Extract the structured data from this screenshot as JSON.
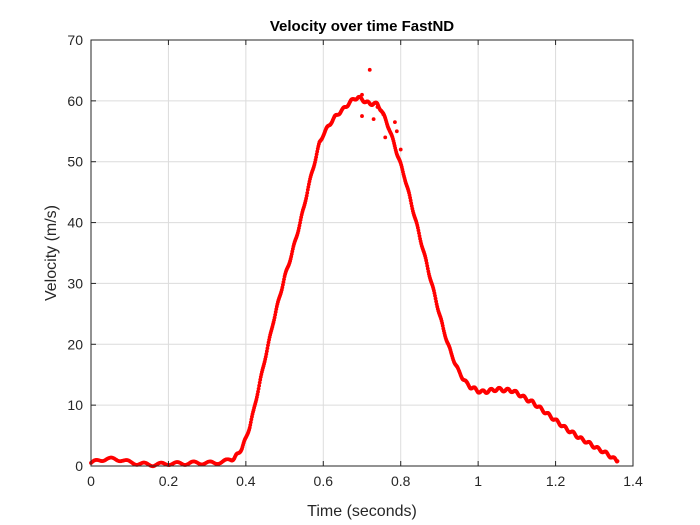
{
  "chart_data": {
    "type": "scatter",
    "title": "Velocity over time FastND",
    "xlabel": "Time (seconds)",
    "ylabel": "Velocity (m/s)",
    "xlim": [
      0,
      1.4
    ],
    "ylim": [
      0,
      70
    ],
    "xticks": [
      0,
      0.2,
      0.4,
      0.6,
      0.8,
      1,
      1.2,
      1.4
    ],
    "xtick_labels": [
      "0",
      "0.2",
      "0.4",
      "0.6",
      "0.8",
      "1",
      "1.2",
      "1.4"
    ],
    "yticks": [
      0,
      10,
      20,
      30,
      40,
      50,
      60,
      70
    ],
    "ytick_labels": [
      "0",
      "10",
      "20",
      "30",
      "40",
      "50",
      "60",
      "70"
    ],
    "grid": true,
    "marker_color": "#ff0000",
    "series": [
      {
        "x": [
          0.0,
          0.02,
          0.04,
          0.06,
          0.08,
          0.1,
          0.12,
          0.14,
          0.16,
          0.18,
          0.2,
          0.22,
          0.24,
          0.26,
          0.28,
          0.3,
          0.32,
          0.34,
          0.36,
          0.37,
          0.38,
          0.39,
          0.4,
          0.41,
          0.42,
          0.43,
          0.44,
          0.45,
          0.46,
          0.47,
          0.48,
          0.49,
          0.5,
          0.51,
          0.52,
          0.53,
          0.54,
          0.55,
          0.56,
          0.57,
          0.58,
          0.59,
          0.6,
          0.61,
          0.62,
          0.63,
          0.64,
          0.65,
          0.66,
          0.67,
          0.68,
          0.69,
          0.7,
          0.71,
          0.72,
          0.73,
          0.74,
          0.75,
          0.76,
          0.77,
          0.78,
          0.79,
          0.8,
          0.81,
          0.82,
          0.83,
          0.84,
          0.85,
          0.86,
          0.87,
          0.88,
          0.89,
          0.9,
          0.91,
          0.92,
          0.93,
          0.94,
          0.95,
          0.96,
          0.97,
          0.98,
          0.99,
          1.0,
          1.01,
          1.02,
          1.03,
          1.04,
          1.05,
          1.06,
          1.07,
          1.08,
          1.09,
          1.1,
          1.11,
          1.12,
          1.13,
          1.14,
          1.15,
          1.16,
          1.17,
          1.18,
          1.19,
          1.2,
          1.21,
          1.22,
          1.23,
          1.24,
          1.25,
          1.26,
          1.27,
          1.28,
          1.29,
          1.3,
          1.31,
          1.32,
          1.33,
          1.34,
          1.35,
          1.36
        ],
        "y": [
          0.5,
          0.9,
          1.2,
          1.1,
          1.0,
          0.6,
          0.4,
          0.3,
          0.2,
          0.3,
          0.4,
          0.4,
          0.4,
          0.5,
          0.5,
          0.5,
          0.5,
          0.7,
          1.0,
          1.3,
          2.0,
          3.0,
          4.5,
          6.5,
          9.0,
          12.0,
          14.8,
          17.8,
          20.5,
          23.5,
          26.0,
          28.5,
          31.0,
          33.0,
          35.2,
          37.5,
          40.0,
          42.5,
          45.5,
          48.0,
          50.5,
          53.0,
          54.5,
          55.5,
          56.5,
          57.3,
          58.0,
          58.5,
          59.2,
          59.8,
          60.4,
          60.5,
          60.3,
          59.8,
          59.5,
          59.6,
          59.4,
          58.5,
          57.0,
          55.5,
          53.5,
          51.5,
          49.5,
          47.5,
          45.0,
          42.5,
          40.0,
          37.5,
          35.0,
          32.5,
          30.0,
          27.5,
          25.0,
          22.5,
          20.5,
          18.5,
          17.0,
          15.5,
          14.5,
          13.6,
          13.0,
          12.7,
          12.3,
          12.2,
          12.2,
          12.4,
          12.5,
          12.6,
          12.6,
          12.4,
          12.5,
          12.3,
          12.0,
          11.6,
          11.2,
          10.8,
          10.5,
          10.0,
          9.5,
          9.0,
          8.5,
          8.0,
          7.5,
          7.0,
          6.5,
          6.0,
          5.6,
          5.2,
          4.7,
          4.3,
          4.0,
          3.6,
          3.2,
          2.8,
          2.5,
          2.1,
          1.7,
          1.2,
          0.8
        ]
      }
    ],
    "outliers": {
      "x": [
        0.72,
        0.7,
        0.73,
        0.755,
        0.76,
        0.785,
        0.79,
        0.8,
        0.7,
        0.74
      ],
      "y": [
        65.1,
        57.5,
        57.0,
        57.8,
        54.0,
        56.5,
        55.0,
        52.0,
        61.0,
        59.0
      ]
    }
  }
}
